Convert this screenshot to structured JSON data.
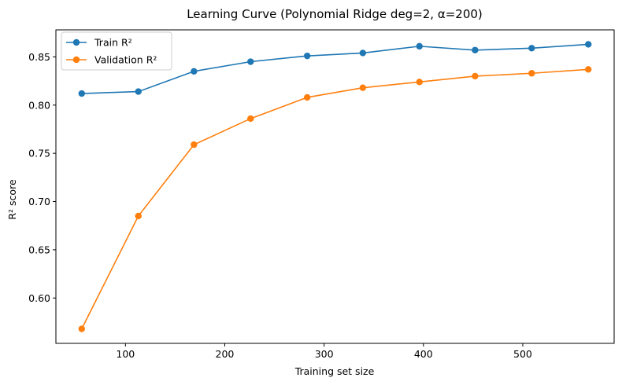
{
  "chart_data": {
    "type": "line",
    "title": "Learning Curve (Polynomial Ridge deg=2, α=200)",
    "xlabel": "Training set size",
    "ylabel": "R² score",
    "xlim": [
      30,
      592
    ],
    "ylim": [
      0.553,
      0.878
    ],
    "xticks": [
      100,
      200,
      300,
      400,
      500
    ],
    "yticks": [
      0.6,
      0.65,
      0.7,
      0.75,
      0.8,
      0.85
    ],
    "ytick_labels": [
      "0.60",
      "0.65",
      "0.70",
      "0.75",
      "0.80",
      "0.85"
    ],
    "x": [
      56,
      113,
      169,
      226,
      283,
      339,
      396,
      452,
      509,
      566
    ],
    "series": [
      {
        "name": "Train R²",
        "color": "#1f77b4",
        "marker": "circle",
        "values": [
          0.812,
          0.814,
          0.835,
          0.845,
          0.851,
          0.854,
          0.861,
          0.857,
          0.859,
          0.863
        ]
      },
      {
        "name": "Validation R²",
        "color": "#ff7f0e",
        "marker": "circle",
        "values": [
          0.568,
          0.685,
          0.759,
          0.786,
          0.808,
          0.818,
          0.824,
          0.83,
          0.833,
          0.837
        ]
      }
    ],
    "grid": false,
    "legend_position": "top-left"
  }
}
